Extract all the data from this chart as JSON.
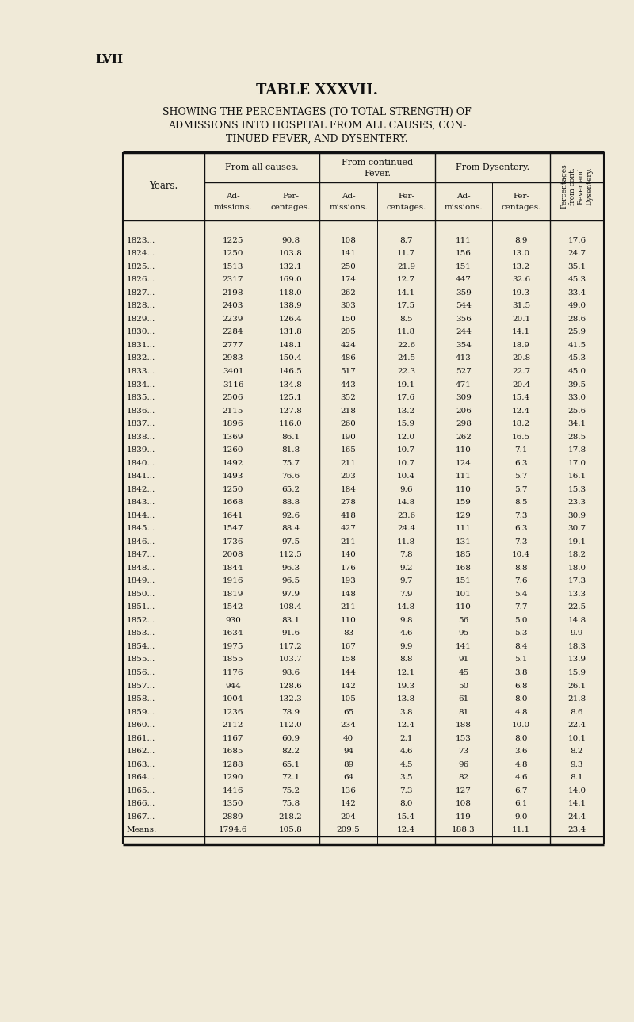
{
  "page_label": "LVII",
  "title": "TABLE XXXVII.",
  "subtitle_line1": "SHOWING THE PERCENTAGES (TO TOTAL STRENGTH) OF",
  "subtitle_line2": "ADMISSIONS INTO HOSPITAL FROM ALL CAUSES, CON-",
  "subtitle_line3": "TINUED FEVER, AND DYSENTERY.",
  "rows": [
    [
      "1823...",
      "1225",
      "90.8",
      "108",
      "8.7",
      "111",
      "8.9",
      "17.6"
    ],
    [
      "1824...",
      "1250",
      "103.8",
      "141",
      "11.7",
      "156",
      "13.0",
      "24.7"
    ],
    [
      "1825...",
      "1513",
      "132.1",
      "250",
      "21.9",
      "151",
      "13.2",
      "35.1"
    ],
    [
      "1826...",
      "2317",
      "169.0",
      "174",
      "12.7",
      "447",
      "32.6",
      "45.3"
    ],
    [
      "1827...",
      "2198",
      "118.0",
      "262",
      "14.1",
      "359",
      "19.3",
      "33.4"
    ],
    [
      "1828...",
      "2403",
      "138.9",
      "303",
      "17.5",
      "544",
      "31.5",
      "49.0"
    ],
    [
      "1829...",
      "2239",
      "126.4",
      "150",
      "8.5",
      "356",
      "20.1",
      "28.6"
    ],
    [
      "1830...",
      "2284",
      "131.8",
      "205",
      "11.8",
      "244",
      "14.1",
      "25.9"
    ],
    [
      "1831...",
      "2777",
      "148.1",
      "424",
      "22.6",
      "354",
      "18.9",
      "41.5"
    ],
    [
      "1832...",
      "2983",
      "150.4",
      "486",
      "24.5",
      "413",
      "20.8",
      "45.3"
    ],
    [
      "1833...",
      "3401",
      "146.5",
      "517",
      "22.3",
      "527",
      "22.7",
      "45.0"
    ],
    [
      "1834...",
      "3116",
      "134.8",
      "443",
      "19.1",
      "471",
      "20.4",
      "39.5"
    ],
    [
      "1835...",
      "2506",
      "125.1",
      "352",
      "17.6",
      "309",
      "15.4",
      "33.0"
    ],
    [
      "1836...",
      "2115",
      "127.8",
      "218",
      "13.2",
      "206",
      "12.4",
      "25.6"
    ],
    [
      "1837...",
      "1896",
      "116.0",
      "260",
      "15.9",
      "298",
      "18.2",
      "34.1"
    ],
    [
      "1838...",
      "1369",
      "86.1",
      "190",
      "12.0",
      "262",
      "16.5",
      "28.5"
    ],
    [
      "1839...",
      "1260",
      "81.8",
      "165",
      "10.7",
      "110",
      "7.1",
      "17.8"
    ],
    [
      "1840...",
      "1492",
      "75.7",
      "211",
      "10.7",
      "124",
      "6.3",
      "17.0"
    ],
    [
      "1841...",
      "1493",
      "76.6",
      "203",
      "10.4",
      "111",
      "5.7",
      "16.1"
    ],
    [
      "1842...",
      "1250",
      "65.2",
      "184",
      "9.6",
      "110",
      "5.7",
      "15.3"
    ],
    [
      "1843...",
      "1668",
      "88.8",
      "278",
      "14.8",
      "159",
      "8.5",
      "23.3"
    ],
    [
      "1844...",
      "1641",
      "92.6",
      "418",
      "23.6",
      "129",
      "7.3",
      "30.9"
    ],
    [
      "1845...",
      "1547",
      "88.4",
      "427",
      "24.4",
      "111",
      "6.3",
      "30.7"
    ],
    [
      "1846...",
      "1736",
      "97.5",
      "211",
      "11.8",
      "131",
      "7.3",
      "19.1"
    ],
    [
      "1847...",
      "2008",
      "112.5",
      "140",
      "7.8",
      "185",
      "10.4",
      "18.2"
    ],
    [
      "1848...",
      "1844",
      "96.3",
      "176",
      "9.2",
      "168",
      "8.8",
      "18.0"
    ],
    [
      "1849...",
      "1916",
      "96.5",
      "193",
      "9.7",
      "151",
      "7.6",
      "17.3"
    ],
    [
      "1850...",
      "1819",
      "97.9",
      "148",
      "7.9",
      "101",
      "5.4",
      "13.3"
    ],
    [
      "1851...",
      "1542",
      "108.4",
      "211",
      "14.8",
      "110",
      "7.7",
      "22.5"
    ],
    [
      "1852...",
      "930",
      "83.1",
      "110",
      "9.8",
      "56",
      "5.0",
      "14.8"
    ],
    [
      "1853...",
      "1634",
      "91.6",
      "83",
      "4.6",
      "95",
      "5.3",
      "9.9"
    ],
    [
      "1854...",
      "1975",
      "117.2",
      "167",
      "9.9",
      "141",
      "8.4",
      "18.3"
    ],
    [
      "1855...",
      "1855",
      "103.7",
      "158",
      "8.8",
      "91",
      "5.1",
      "13.9"
    ],
    [
      "1856...",
      "1176",
      "98.6",
      "144",
      "12.1",
      "45",
      "3.8",
      "15.9"
    ],
    [
      "1857...",
      "944",
      "128.6",
      "142",
      "19.3",
      "50",
      "6.8",
      "26.1"
    ],
    [
      "1858...",
      "1004",
      "132.3",
      "105",
      "13.8",
      "61",
      "8.0",
      "21.8"
    ],
    [
      "1859...",
      "1236",
      "78.9",
      "65",
      "3.8",
      "81",
      "4.8",
      "8.6"
    ],
    [
      "1860...",
      "2112",
      "112.0",
      "234",
      "12.4",
      "188",
      "10.0",
      "22.4"
    ],
    [
      "1861...",
      "1167",
      "60.9",
      "40",
      "2.1",
      "153",
      "8.0",
      "10.1"
    ],
    [
      "1862...",
      "1685",
      "82.2",
      "94",
      "4.6",
      "73",
      "3.6",
      "8.2"
    ],
    [
      "1863...",
      "1288",
      "65.1",
      "89",
      "4.5",
      "96",
      "4.8",
      "9.3"
    ],
    [
      "1864...",
      "1290",
      "72.1",
      "64",
      "3.5",
      "82",
      "4.6",
      "8.1"
    ],
    [
      "1865...",
      "1416",
      "75.2",
      "136",
      "7.3",
      "127",
      "6.7",
      "14.0"
    ],
    [
      "1866...",
      "1350",
      "75.8",
      "142",
      "8.0",
      "108",
      "6.1",
      "14.1"
    ],
    [
      "1867...",
      "2889",
      "218.2",
      "204",
      "15.4",
      "119",
      "9.0",
      "24.4"
    ]
  ],
  "means_row": [
    "Means.",
    "1794.6",
    "105.8",
    "209.5",
    "12.4",
    "188.3",
    "11.1",
    "23.4"
  ],
  "bg_color": "#f0ead8",
  "text_color": "#111111",
  "line_color": "#111111"
}
